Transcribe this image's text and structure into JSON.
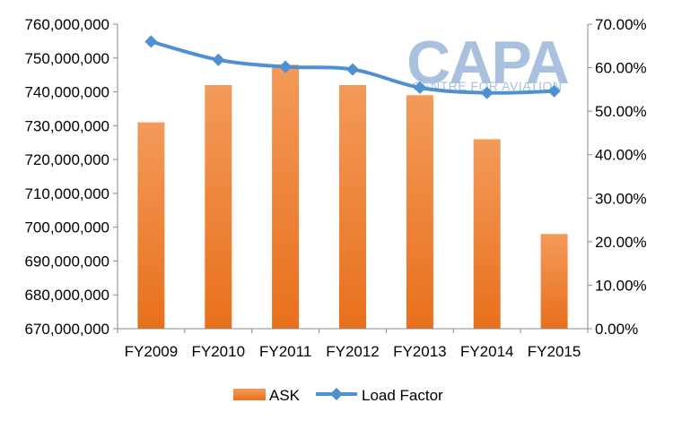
{
  "logo": {
    "main": "CAPA",
    "sub": "CENTRE FOR AVIATION",
    "color": "#9bb7d9"
  },
  "chart_data": {
    "type": "bar",
    "categories": [
      "FY2009",
      "FY2010",
      "FY2011",
      "FY2012",
      "FY2013",
      "FY2014",
      "FY2015"
    ],
    "series": [
      {
        "name": "ASK",
        "type": "bar",
        "axis": "left",
        "color": "#f07e26",
        "values": [
          731000000,
          742000000,
          748000000,
          742000000,
          739000000,
          726000000,
          698000000
        ]
      },
      {
        "name": "Load Factor",
        "type": "line",
        "axis": "right",
        "color": "#4f90d0",
        "marker": "diamond",
        "values": [
          66.0,
          61.8,
          60.2,
          59.6,
          55.4,
          54.2,
          54.6
        ]
      }
    ],
    "y_left": {
      "ylim": [
        670000000,
        760000000
      ],
      "ticks": [
        670000000,
        680000000,
        690000000,
        700000000,
        710000000,
        720000000,
        730000000,
        740000000,
        750000000,
        760000000
      ],
      "tick_labels": [
        "670,000,000",
        "680,000,000",
        "690,000,000",
        "700,000,000",
        "710,000,000",
        "720,000,000",
        "730,000,000",
        "740,000,000",
        "750,000,000",
        "760,000,000"
      ]
    },
    "y_right": {
      "ylim": [
        0,
        70
      ],
      "ticks": [
        0,
        10,
        20,
        30,
        40,
        50,
        60,
        70
      ],
      "tick_labels": [
        "0.00%",
        "10.00%",
        "20.00%",
        "30.00%",
        "40.00%",
        "50.00%",
        "60.00%",
        "70.00%"
      ]
    },
    "grid": false,
    "legend": {
      "position": "bottom",
      "entries": [
        "ASK",
        "Load Factor"
      ]
    }
  }
}
